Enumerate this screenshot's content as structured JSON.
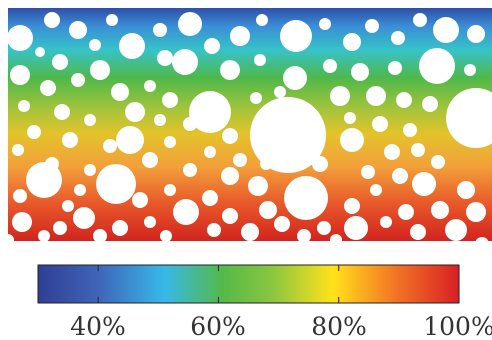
{
  "figure": {
    "gradient_stops": [
      {
        "offset": 0.0,
        "color": "#2f4fa8"
      },
      {
        "offset": 0.08,
        "color": "#3a8fd6"
      },
      {
        "offset": 0.18,
        "color": "#36c3c9"
      },
      {
        "offset": 0.3,
        "color": "#4fb84a"
      },
      {
        "offset": 0.44,
        "color": "#a8c43a"
      },
      {
        "offset": 0.54,
        "color": "#e3c32a"
      },
      {
        "offset": 0.68,
        "color": "#f2a03a"
      },
      {
        "offset": 0.84,
        "color": "#e8582a"
      },
      {
        "offset": 1.0,
        "color": "#d2241e"
      }
    ],
    "inclusion_color": "#ffffff"
  },
  "colorbar": {
    "stops": [
      {
        "offset": 0.0,
        "color": "#2f3f93"
      },
      {
        "offset": 0.14,
        "color": "#3f63b8"
      },
      {
        "offset": 0.3,
        "color": "#37b8e8"
      },
      {
        "offset": 0.44,
        "color": "#55b948"
      },
      {
        "offset": 0.56,
        "color": "#8cc63f"
      },
      {
        "offset": 0.7,
        "color": "#ffe21a"
      },
      {
        "offset": 0.84,
        "color": "#f47a24"
      },
      {
        "offset": 1.0,
        "color": "#d91f26"
      }
    ],
    "ticks": [
      {
        "label": "40%",
        "value": 40
      },
      {
        "label": "60%",
        "value": 60
      },
      {
        "label": "80%",
        "value": 80
      },
      {
        "label": "100%",
        "value": 100
      }
    ],
    "range": [
      30,
      100
    ]
  }
}
